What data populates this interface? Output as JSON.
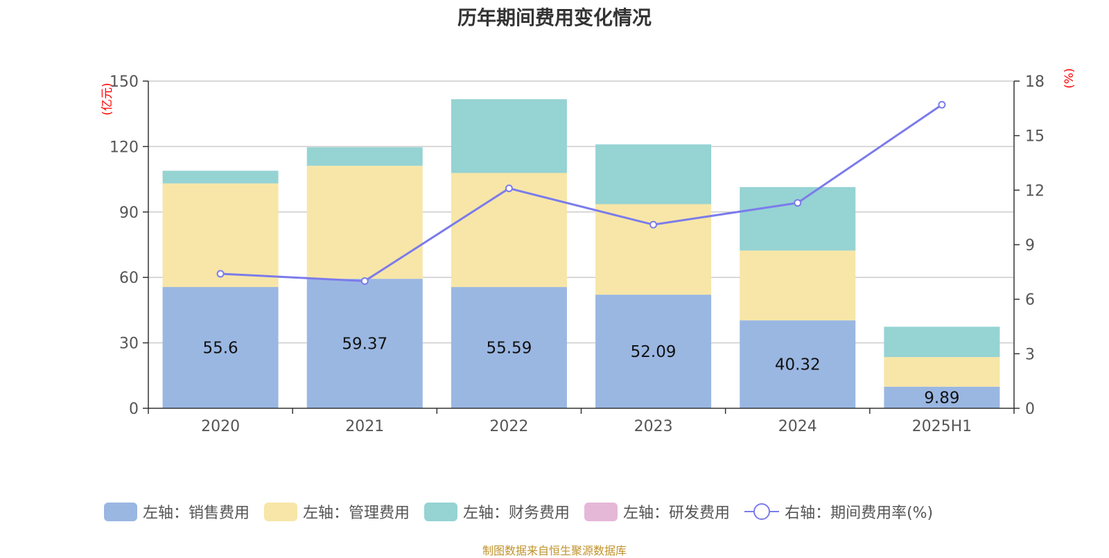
{
  "title": "历年期间费用变化情况",
  "source": "制图数据来自恒生聚源数据库",
  "colors": {
    "sales": "#9ab7e2",
    "admin": "#f7e6a8",
    "finance": "#96d3d3",
    "rd": "#e6b8d8",
    "rate": "#7b7beb",
    "axis_unit": "#ff0000"
  },
  "chart_data": {
    "type": "bar",
    "stacked": true,
    "title": "历年期间费用变化情况",
    "categories": [
      "2020",
      "2021",
      "2022",
      "2023",
      "2024",
      "2025H1"
    ],
    "y_left": {
      "unit": "(亿元)",
      "ylim": [
        0,
        150
      ],
      "ticks": [
        "0",
        "30",
        "60",
        "90",
        "120",
        "150"
      ]
    },
    "y_right": {
      "unit": "(%)",
      "ylim": [
        0,
        18
      ],
      "ticks": [
        "0",
        "3",
        "6",
        "9",
        "12",
        "15",
        "18"
      ]
    },
    "series": [
      {
        "name": "左轴：销售费用",
        "key": "sales",
        "type": "bar",
        "axis": "left",
        "values": [
          55.6,
          59.37,
          55.59,
          52.09,
          40.32,
          9.89
        ],
        "labels": [
          "55.6",
          "59.37",
          "55.59",
          "52.09",
          "40.32",
          "9.89"
        ]
      },
      {
        "name": "左轴：管理费用",
        "key": "admin",
        "type": "bar",
        "axis": "left",
        "values": [
          47.5,
          51.8,
          52.3,
          41.5,
          32.0,
          13.6
        ]
      },
      {
        "name": "左轴：财务费用",
        "key": "finance",
        "type": "bar",
        "axis": "left",
        "values": [
          5.8,
          8.5,
          33.8,
          27.4,
          29.1,
          13.9
        ]
      },
      {
        "name": "左轴：研发费用",
        "key": "rd",
        "type": "bar",
        "axis": "left",
        "values": [
          0,
          0,
          0,
          0,
          0,
          0
        ]
      },
      {
        "name": "右轴：期间费用率(%)",
        "key": "rate",
        "type": "line",
        "axis": "right",
        "values": [
          7.4,
          7.0,
          12.1,
          10.1,
          11.3,
          16.7
        ]
      }
    ],
    "grid": true,
    "legend_position": "bottom"
  }
}
